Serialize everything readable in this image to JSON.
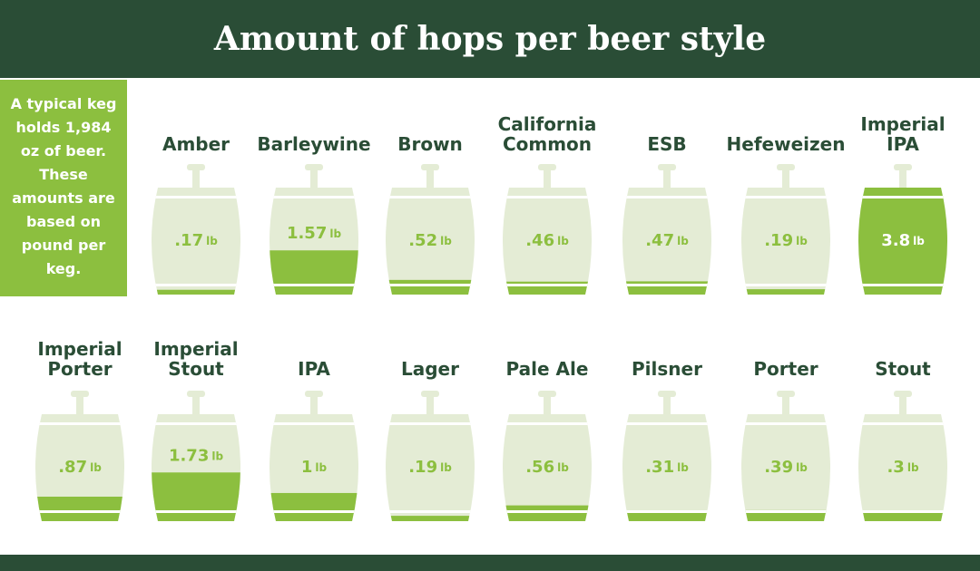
{
  "title": "Amount of hops per beer style",
  "note": "A typical keg holds 1,984 oz of beer. These amounts are based on pound per keg.",
  "unit": "lb",
  "kegs": [
    {
      "name": "Amber",
      "amount": ".17"
    },
    {
      "name": "Barleywine",
      "amount": "1.57"
    },
    {
      "name": "Brown",
      "amount": ".52"
    },
    {
      "name": "California Common",
      "amount": ".46"
    },
    {
      "name": "ESB",
      "amount": ".47"
    },
    {
      "name": "Hefeweizen",
      "amount": ".19"
    },
    {
      "name": "Imperial IPA",
      "amount": "3.8"
    },
    {
      "name": "Imperial Porter",
      "amount": ".87"
    },
    {
      "name": "Imperial Stout",
      "amount": "1.73"
    },
    {
      "name": "IPA",
      "amount": "1"
    },
    {
      "name": "Lager",
      "amount": ".19"
    },
    {
      "name": "Pale Ale",
      "amount": ".56"
    },
    {
      "name": "Pilsner",
      "amount": ".31"
    },
    {
      "name": "Porter",
      "amount": ".39"
    },
    {
      "name": "Stout",
      "amount": ".3"
    }
  ]
}
